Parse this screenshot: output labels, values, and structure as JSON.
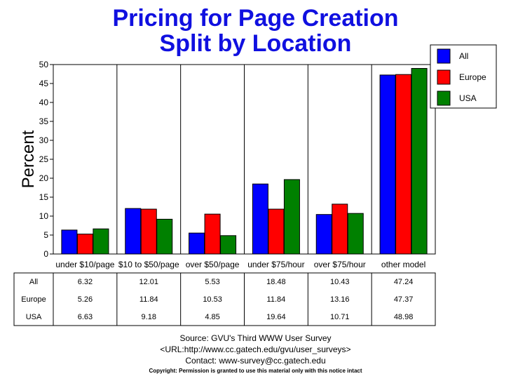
{
  "chart_data": {
    "type": "bar",
    "title": "Pricing for Page Creation",
    "subtitle": "Split by Location",
    "ylabel": "Percent",
    "xlabel": "",
    "ylim": [
      0,
      50
    ],
    "yticks": [
      0,
      5,
      10,
      15,
      20,
      25,
      30,
      35,
      40,
      45,
      50
    ],
    "grid": false,
    "legend_placement": "top-right",
    "categories": [
      "under $10/page",
      "$10 to $50/page",
      "over $50/page",
      "under $75/hour",
      "over $75/hour",
      "other model"
    ],
    "series": [
      {
        "name": "All",
        "color": "#0000ff",
        "values": [
          6.32,
          12.01,
          5.53,
          18.48,
          10.43,
          47.24
        ]
      },
      {
        "name": "Europe",
        "color": "#ff0000",
        "values": [
          5.26,
          11.84,
          10.53,
          11.84,
          13.16,
          47.37
        ]
      },
      {
        "name": "USA",
        "color": "#008000",
        "values": [
          6.63,
          9.18,
          4.85,
          19.64,
          10.71,
          48.98
        ]
      }
    ],
    "table": {
      "rows": [
        {
          "label": "All",
          "values": [
            "6.32",
            "12.01",
            "5.53",
            "18.48",
            "10.43",
            "47.24"
          ]
        },
        {
          "label": "Europe",
          "values": [
            "5.26",
            "11.84",
            "10.53",
            "11.84",
            "13.16",
            "47.37"
          ]
        },
        {
          "label": "USA",
          "values": [
            "6.63",
            "9.18",
            "4.85",
            "19.64",
            "10.71",
            "48.98"
          ]
        }
      ]
    }
  },
  "footer": {
    "source": "Source: GVU's Third WWW User Survey",
    "url": "<URL:http://www.cc.gatech.edu/gvu/user_surveys>",
    "contact": "Contact: www-survey@cc.gatech.edu",
    "copyright": "Copyright: Permission is granted to use this material only with this notice intact"
  }
}
